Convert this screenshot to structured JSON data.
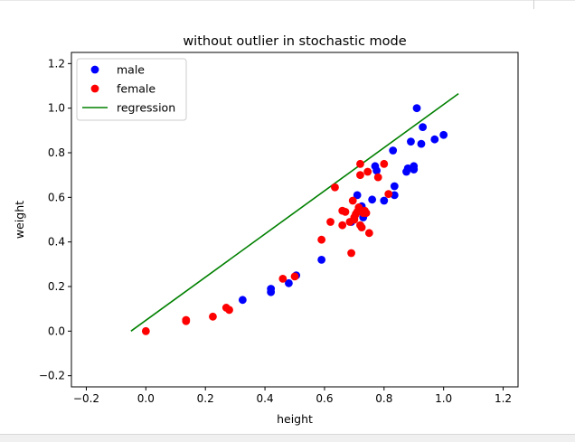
{
  "chart_data": {
    "type": "scatter",
    "title": "without outlier in stochastic mode",
    "xlabel": "height",
    "ylabel": "weight",
    "xlim": [
      -0.25,
      1.25
    ],
    "ylim": [
      -0.25,
      1.25
    ],
    "xticks": [
      -0.2,
      0.0,
      0.2,
      0.4,
      0.6,
      0.8,
      1.0,
      1.2
    ],
    "yticks": [
      -0.2,
      0.0,
      0.2,
      0.4,
      0.6,
      0.8,
      1.0,
      1.2
    ],
    "xtick_labels": [
      "−0.2",
      "0.0",
      "0.2",
      "0.4",
      "0.6",
      "0.8",
      "1.0",
      "1.2"
    ],
    "ytick_labels": [
      "−0.2",
      "0.0",
      "0.2",
      "0.4",
      "0.6",
      "0.8",
      "1.0",
      "1.2"
    ],
    "grid": false,
    "legend_position": "top-left",
    "series": [
      {
        "name": "male",
        "kind": "scatter",
        "color": "#0000ff",
        "points": [
          [
            0.91,
            1.0
          ],
          [
            0.93,
            0.915
          ],
          [
            0.89,
            0.85
          ],
          [
            0.925,
            0.84
          ],
          [
            0.97,
            0.86
          ],
          [
            1.0,
            0.88
          ],
          [
            0.83,
            0.81
          ],
          [
            0.77,
            0.74
          ],
          [
            0.775,
            0.72
          ],
          [
            0.88,
            0.73
          ],
          [
            0.9,
            0.74
          ],
          [
            0.875,
            0.715
          ],
          [
            0.9,
            0.725
          ],
          [
            0.835,
            0.65
          ],
          [
            0.71,
            0.61
          ],
          [
            0.76,
            0.59
          ],
          [
            0.8,
            0.585
          ],
          [
            0.835,
            0.61
          ],
          [
            0.725,
            0.56
          ],
          [
            0.69,
            0.49
          ],
          [
            0.59,
            0.32
          ],
          [
            0.505,
            0.25
          ],
          [
            0.48,
            0.215
          ],
          [
            0.42,
            0.19
          ],
          [
            0.42,
            0.175
          ],
          [
            0.325,
            0.14
          ],
          [
            0.73,
            0.51
          ]
        ]
      },
      {
        "name": "female",
        "kind": "scatter",
        "color": "#ff0000",
        "points": [
          [
            0.0,
            0.0
          ],
          [
            0.135,
            0.05
          ],
          [
            0.135,
            0.045
          ],
          [
            0.225,
            0.065
          ],
          [
            0.27,
            0.105
          ],
          [
            0.28,
            0.095
          ],
          [
            0.46,
            0.235
          ],
          [
            0.5,
            0.245
          ],
          [
            0.59,
            0.41
          ],
          [
            0.62,
            0.49
          ],
          [
            0.635,
            0.645
          ],
          [
            0.66,
            0.54
          ],
          [
            0.67,
            0.535
          ],
          [
            0.66,
            0.475
          ],
          [
            0.685,
            0.49
          ],
          [
            0.69,
            0.35
          ],
          [
            0.695,
            0.585
          ],
          [
            0.7,
            0.5
          ],
          [
            0.705,
            0.525
          ],
          [
            0.71,
            0.535
          ],
          [
            0.715,
            0.555
          ],
          [
            0.72,
            0.475
          ],
          [
            0.725,
            0.465
          ],
          [
            0.73,
            0.53
          ],
          [
            0.735,
            0.54
          ],
          [
            0.74,
            0.53
          ],
          [
            0.75,
            0.44
          ],
          [
            0.72,
            0.7
          ],
          [
            0.72,
            0.75
          ],
          [
            0.745,
            0.715
          ],
          [
            0.78,
            0.69
          ],
          [
            0.8,
            0.75
          ],
          [
            0.815,
            0.615
          ],
          [
            0.7,
            0.51
          ]
        ]
      },
      {
        "name": "regression",
        "kind": "line",
        "color": "#008000",
        "points": [
          [
            -0.05,
            0.0
          ],
          [
            1.05,
            1.065
          ]
        ]
      }
    ]
  }
}
